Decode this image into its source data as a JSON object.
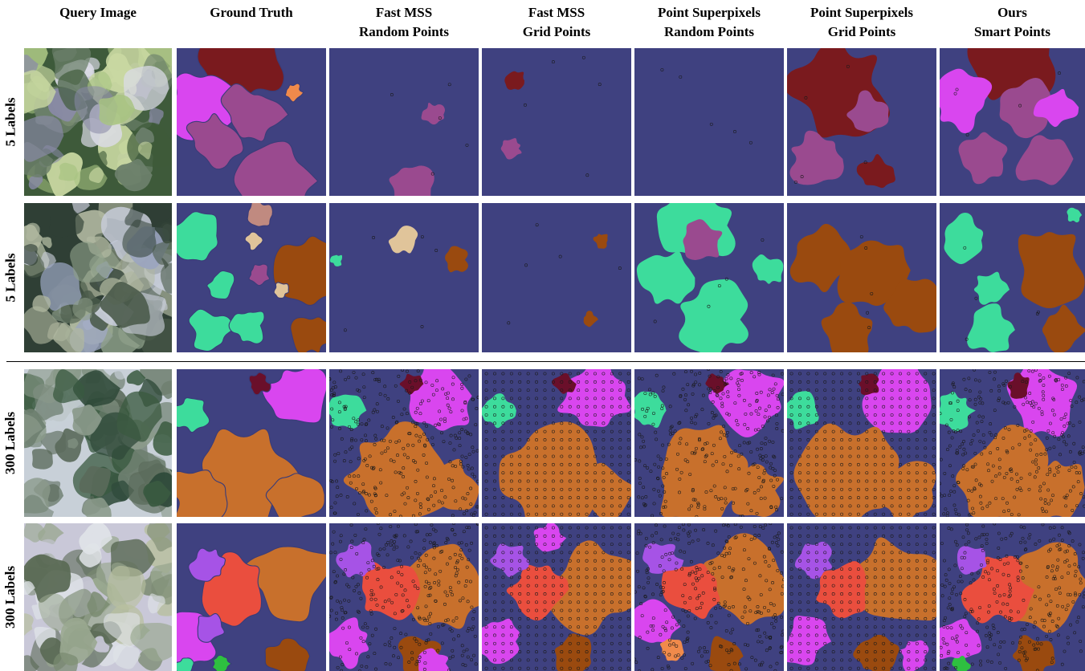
{
  "columns": [
    {
      "line1": "Query Image",
      "line2": ""
    },
    {
      "line1": "Ground Truth",
      "line2": ""
    },
    {
      "line1": "Fast MSS",
      "line2": "Random Points"
    },
    {
      "line1": "Fast MSS",
      "line2": "Grid Points"
    },
    {
      "line1": "Point Superpixels",
      "line2": "Random Points"
    },
    {
      "line1": "Point Superpixels",
      "line2": "Grid Points"
    },
    {
      "line1": "Ours",
      "line2": "Smart Points"
    }
  ],
  "rows": [
    {
      "label": "5 Labels"
    },
    {
      "label": "5 Labels"
    },
    {
      "label": "300 Labels"
    },
    {
      "label": "300 Labels"
    }
  ],
  "colors": {
    "background_class": "#3f4180",
    "magenta": "#d946ef",
    "mauve": "#9a4a8f",
    "dark_red": "#7a1a1e",
    "orange_light": "#f08a4b",
    "teal_green": "#3ddc9c",
    "brown": "#9a4a0f",
    "beige": "#e0c49a",
    "dusty_rose": "#c08a80",
    "copper": "#c8702c",
    "red_orange": "#ea4e3e",
    "purple": "#a653e6",
    "green": "#2ec040",
    "maroon": "#6a0f2a"
  }
}
